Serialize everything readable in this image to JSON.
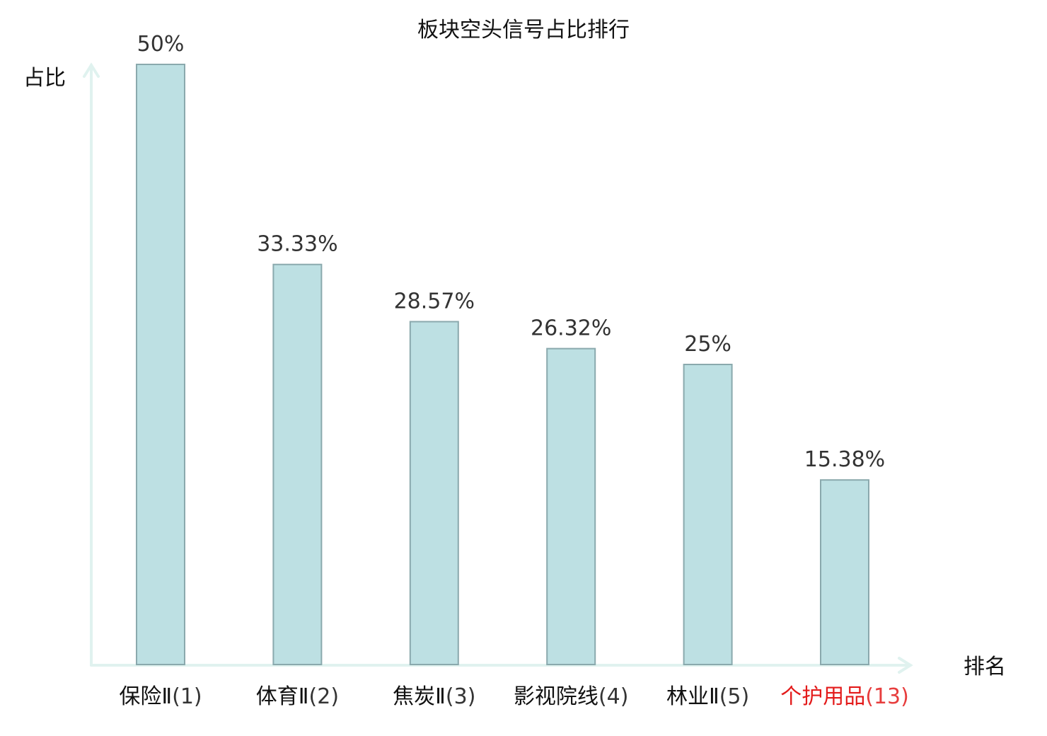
{
  "chart_data": {
    "type": "bar",
    "title": "板块空头信号占比排行",
    "ylabel": "占比",
    "xlabel": "排名",
    "unit": "%",
    "ylim": [
      0,
      50
    ],
    "grid": false,
    "categories": [
      {
        "name": "保险Ⅱ",
        "rank": "(1)",
        "value": 50,
        "label": "50%",
        "highlight": false
      },
      {
        "name": "体育Ⅱ",
        "rank": "(2)",
        "value": 33.33,
        "label": "33.33%",
        "highlight": false
      },
      {
        "name": "焦炭Ⅱ",
        "rank": "(3)",
        "value": 28.57,
        "label": "28.57%",
        "highlight": false
      },
      {
        "name": "影视院线",
        "rank": "(4)",
        "value": 26.32,
        "label": "26.32%",
        "highlight": false
      },
      {
        "name": "林业Ⅱ",
        "rank": "(5)",
        "value": 25,
        "label": "25%",
        "highlight": false
      },
      {
        "name": "个护用品",
        "rank": "(13)",
        "value": 15.38,
        "label": "15.38%",
        "highlight": true
      }
    ],
    "colors": {
      "bar_fill": "#bde0e3",
      "bar_stroke": "#8aa9ad",
      "axis": "#e0f2ef",
      "label_text": "#111111",
      "highlight_text": "#e31b1b"
    }
  }
}
